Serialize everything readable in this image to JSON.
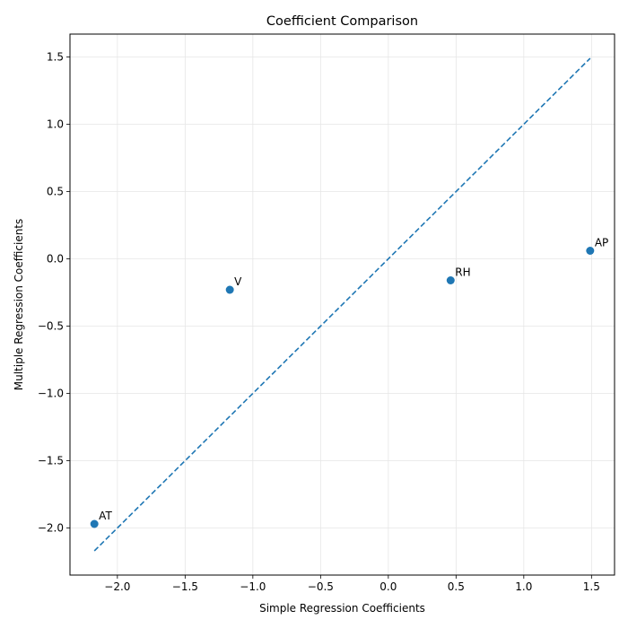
{
  "chart_data": {
    "type": "scatter",
    "title": "Coefficient Comparison",
    "xlabel": "Simple Regression Coefficients",
    "ylabel": "Multiple Regression Coefficients",
    "xlim": [
      -2.35,
      1.67
    ],
    "ylim": [
      -2.35,
      1.67
    ],
    "xticks": [
      -2.0,
      -1.5,
      -1.0,
      -0.5,
      0.0,
      0.5,
      1.0,
      1.5
    ],
    "yticks": [
      -2.0,
      -1.5,
      -1.0,
      -0.5,
      0.0,
      0.5,
      1.0,
      1.5
    ],
    "tick_labels": [
      "−2.0",
      "−1.5",
      "−1.0",
      "−0.5",
      "0.0",
      "0.5",
      "1.0",
      "1.5"
    ],
    "grid": true,
    "points": [
      {
        "label": "AT",
        "x": -2.17,
        "y": -1.97
      },
      {
        "label": "V",
        "x": -1.17,
        "y": -0.23
      },
      {
        "label": "AP",
        "x": 1.49,
        "y": 0.06
      },
      {
        "label": "RH",
        "x": 0.46,
        "y": -0.16
      }
    ],
    "reference_line": {
      "x": [
        -2.17,
        1.49
      ],
      "y": [
        -2.17,
        1.49
      ],
      "style": "dashed"
    },
    "colors": {
      "point": "#1f77b4",
      "line": "#1f77b4",
      "grid": "#e6e6e6",
      "axis": "#000000"
    }
  }
}
